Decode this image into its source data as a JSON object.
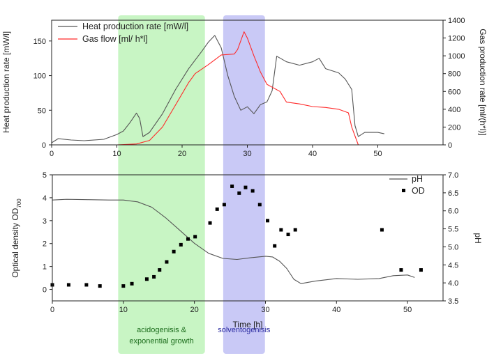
{
  "chart_data": [
    {
      "type": "line",
      "xlim": [
        0,
        60
      ],
      "x_ticks": [
        0,
        10,
        20,
        30,
        40,
        50
      ],
      "ylabel_left": "Heat production rate [mW/l]",
      "ylim_left": [
        0,
        180
      ],
      "y_ticks_left": [
        0,
        50,
        100,
        150
      ],
      "ylabel_right": "Gas production rate [ml/(h*l)]",
      "ylim_right": [
        0,
        1400
      ],
      "y_ticks_right": [
        0,
        200,
        400,
        600,
        800,
        1000,
        1200,
        1400
      ],
      "legend_position": "top-left",
      "series": [
        {
          "name": "Heat production rate [mW/l]",
          "axis": "left",
          "color": "#555555",
          "points": [
            [
              0,
              3
            ],
            [
              1,
              9
            ],
            [
              3,
              7
            ],
            [
              5,
              6
            ],
            [
              8,
              8
            ],
            [
              10,
              15
            ],
            [
              11,
              20
            ],
            [
              12,
              32
            ],
            [
              13,
              46
            ],
            [
              13.5,
              38
            ],
            [
              14,
              12
            ],
            [
              15,
              18
            ],
            [
              17,
              45
            ],
            [
              19,
              80
            ],
            [
              21,
              110
            ],
            [
              23,
              135
            ],
            [
              24,
              148
            ],
            [
              25,
              158
            ],
            [
              26,
              140
            ],
            [
              27,
              100
            ],
            [
              28,
              70
            ],
            [
              29,
              50
            ],
            [
              30,
              55
            ],
            [
              31,
              45
            ],
            [
              32,
              58
            ],
            [
              33,
              62
            ],
            [
              33.8,
              78
            ],
            [
              34.5,
              128
            ],
            [
              36,
              120
            ],
            [
              38,
              115
            ],
            [
              40,
              120
            ],
            [
              41,
              125
            ],
            [
              42,
              110
            ],
            [
              44,
              104
            ],
            [
              45,
              95
            ],
            [
              46,
              80
            ],
            [
              46.5,
              28
            ],
            [
              47,
              12
            ],
            [
              48,
              18
            ],
            [
              50,
              18
            ],
            [
              51,
              16
            ]
          ]
        },
        {
          "name": "Gas flow [ml/ h*l]",
          "axis": "right",
          "color": "#ff2a2a",
          "points": [
            [
              10,
              0
            ],
            [
              13,
              10
            ],
            [
              15,
              50
            ],
            [
              17,
              200
            ],
            [
              19,
              450
            ],
            [
              21,
              700
            ],
            [
              22,
              800
            ],
            [
              24,
              900
            ],
            [
              26,
              1010
            ],
            [
              28,
              1020
            ],
            [
              28.5,
              1070
            ],
            [
              29.5,
              1270
            ],
            [
              30,
              1200
            ],
            [
              31,
              1000
            ],
            [
              32,
              820
            ],
            [
              33,
              680
            ],
            [
              34,
              640
            ],
            [
              35,
              600
            ],
            [
              36,
              480
            ],
            [
              38,
              460
            ],
            [
              40,
              430
            ],
            [
              42,
              420
            ],
            [
              44,
              400
            ],
            [
              45.5,
              360
            ],
            [
              46,
              200
            ],
            [
              47,
              0
            ]
          ]
        }
      ]
    },
    {
      "type": "line",
      "xlim": [
        0,
        55
      ],
      "x_ticks": [
        0,
        10,
        20,
        30,
        40,
        50
      ],
      "xlabel": "Time [h]",
      "ylabel_left": "Optical density OD",
      "ylabel_left_sub": "700",
      "ylim_left": [
        -0.5,
        5
      ],
      "y_ticks_left": [
        0,
        1,
        2,
        3,
        4,
        5
      ],
      "ylabel_right": "pH",
      "ylim_right": [
        3.5,
        7.0
      ],
      "y_ticks_right": [
        "3.5",
        "4.0",
        "4.5",
        "5.0",
        "5.5",
        "6.0",
        "6.5",
        "7.0"
      ],
      "legend_position": "top-right",
      "series": [
        {
          "name": "pH",
          "axis": "right",
          "style": "line",
          "color": "#555555",
          "points": [
            [
              0,
              6.3
            ],
            [
              2,
              6.32
            ],
            [
              5,
              6.31
            ],
            [
              8,
              6.3
            ],
            [
              10,
              6.3
            ],
            [
              12,
              6.25
            ],
            [
              14,
              6.1
            ],
            [
              16,
              5.8
            ],
            [
              18,
              5.45
            ],
            [
              20,
              5.1
            ],
            [
              22,
              4.82
            ],
            [
              24,
              4.68
            ],
            [
              26,
              4.65
            ],
            [
              28,
              4.7
            ],
            [
              30,
              4.74
            ],
            [
              31,
              4.72
            ],
            [
              32,
              4.6
            ],
            [
              33,
              4.4
            ],
            [
              34,
              4.1
            ],
            [
              35,
              3.98
            ],
            [
              37,
              4.05
            ],
            [
              40,
              4.12
            ],
            [
              43,
              4.1
            ],
            [
              46,
              4.12
            ],
            [
              48,
              4.2
            ],
            [
              50,
              4.22
            ],
            [
              51,
              4.15
            ]
          ]
        },
        {
          "name": "OD",
          "axis": "left",
          "style": "markers",
          "color": "#000000",
          "points": [
            [
              0,
              0.2
            ],
            [
              2.3,
              0.2
            ],
            [
              4.8,
              0.2
            ],
            [
              6.7,
              0.15
            ],
            [
              10,
              0.15
            ],
            [
              11.2,
              0.25
            ],
            [
              13.3,
              0.45
            ],
            [
              14.3,
              0.55
            ],
            [
              15.1,
              0.85
            ],
            [
              16.1,
              1.2
            ],
            [
              17.1,
              1.65
            ],
            [
              18.1,
              1.95
            ],
            [
              19.1,
              2.2
            ],
            [
              20.1,
              2.3
            ],
            [
              22.2,
              2.9
            ],
            [
              23.2,
              3.5
            ],
            [
              24.2,
              3.7
            ],
            [
              25.3,
              4.5
            ],
            [
              26.3,
              4.2
            ],
            [
              27.2,
              4.45
            ],
            [
              28.2,
              4.3
            ],
            [
              29.2,
              3.7
            ],
            [
              30.3,
              3.0
            ],
            [
              31.3,
              1.9
            ],
            [
              32.2,
              2.6
            ],
            [
              33.2,
              2.4
            ],
            [
              34.2,
              2.6
            ],
            [
              46.4,
              2.6
            ],
            [
              49.1,
              0.85
            ],
            [
              51.9,
              0.85
            ]
          ]
        }
      ]
    }
  ],
  "phases": [
    {
      "label_line1": "acidogenisis &",
      "label_line2": "exponential growth",
      "x_start": 10.2,
      "x_end": 23.5,
      "color": "#c8f5c4",
      "label_color": "#1a6b1a"
    },
    {
      "label_line1": "solventogenisis",
      "label_line2": "",
      "x_start": 26.3,
      "x_end": 32.7,
      "color": "#c9c9f6",
      "label_color": "#2a2aa0"
    }
  ]
}
